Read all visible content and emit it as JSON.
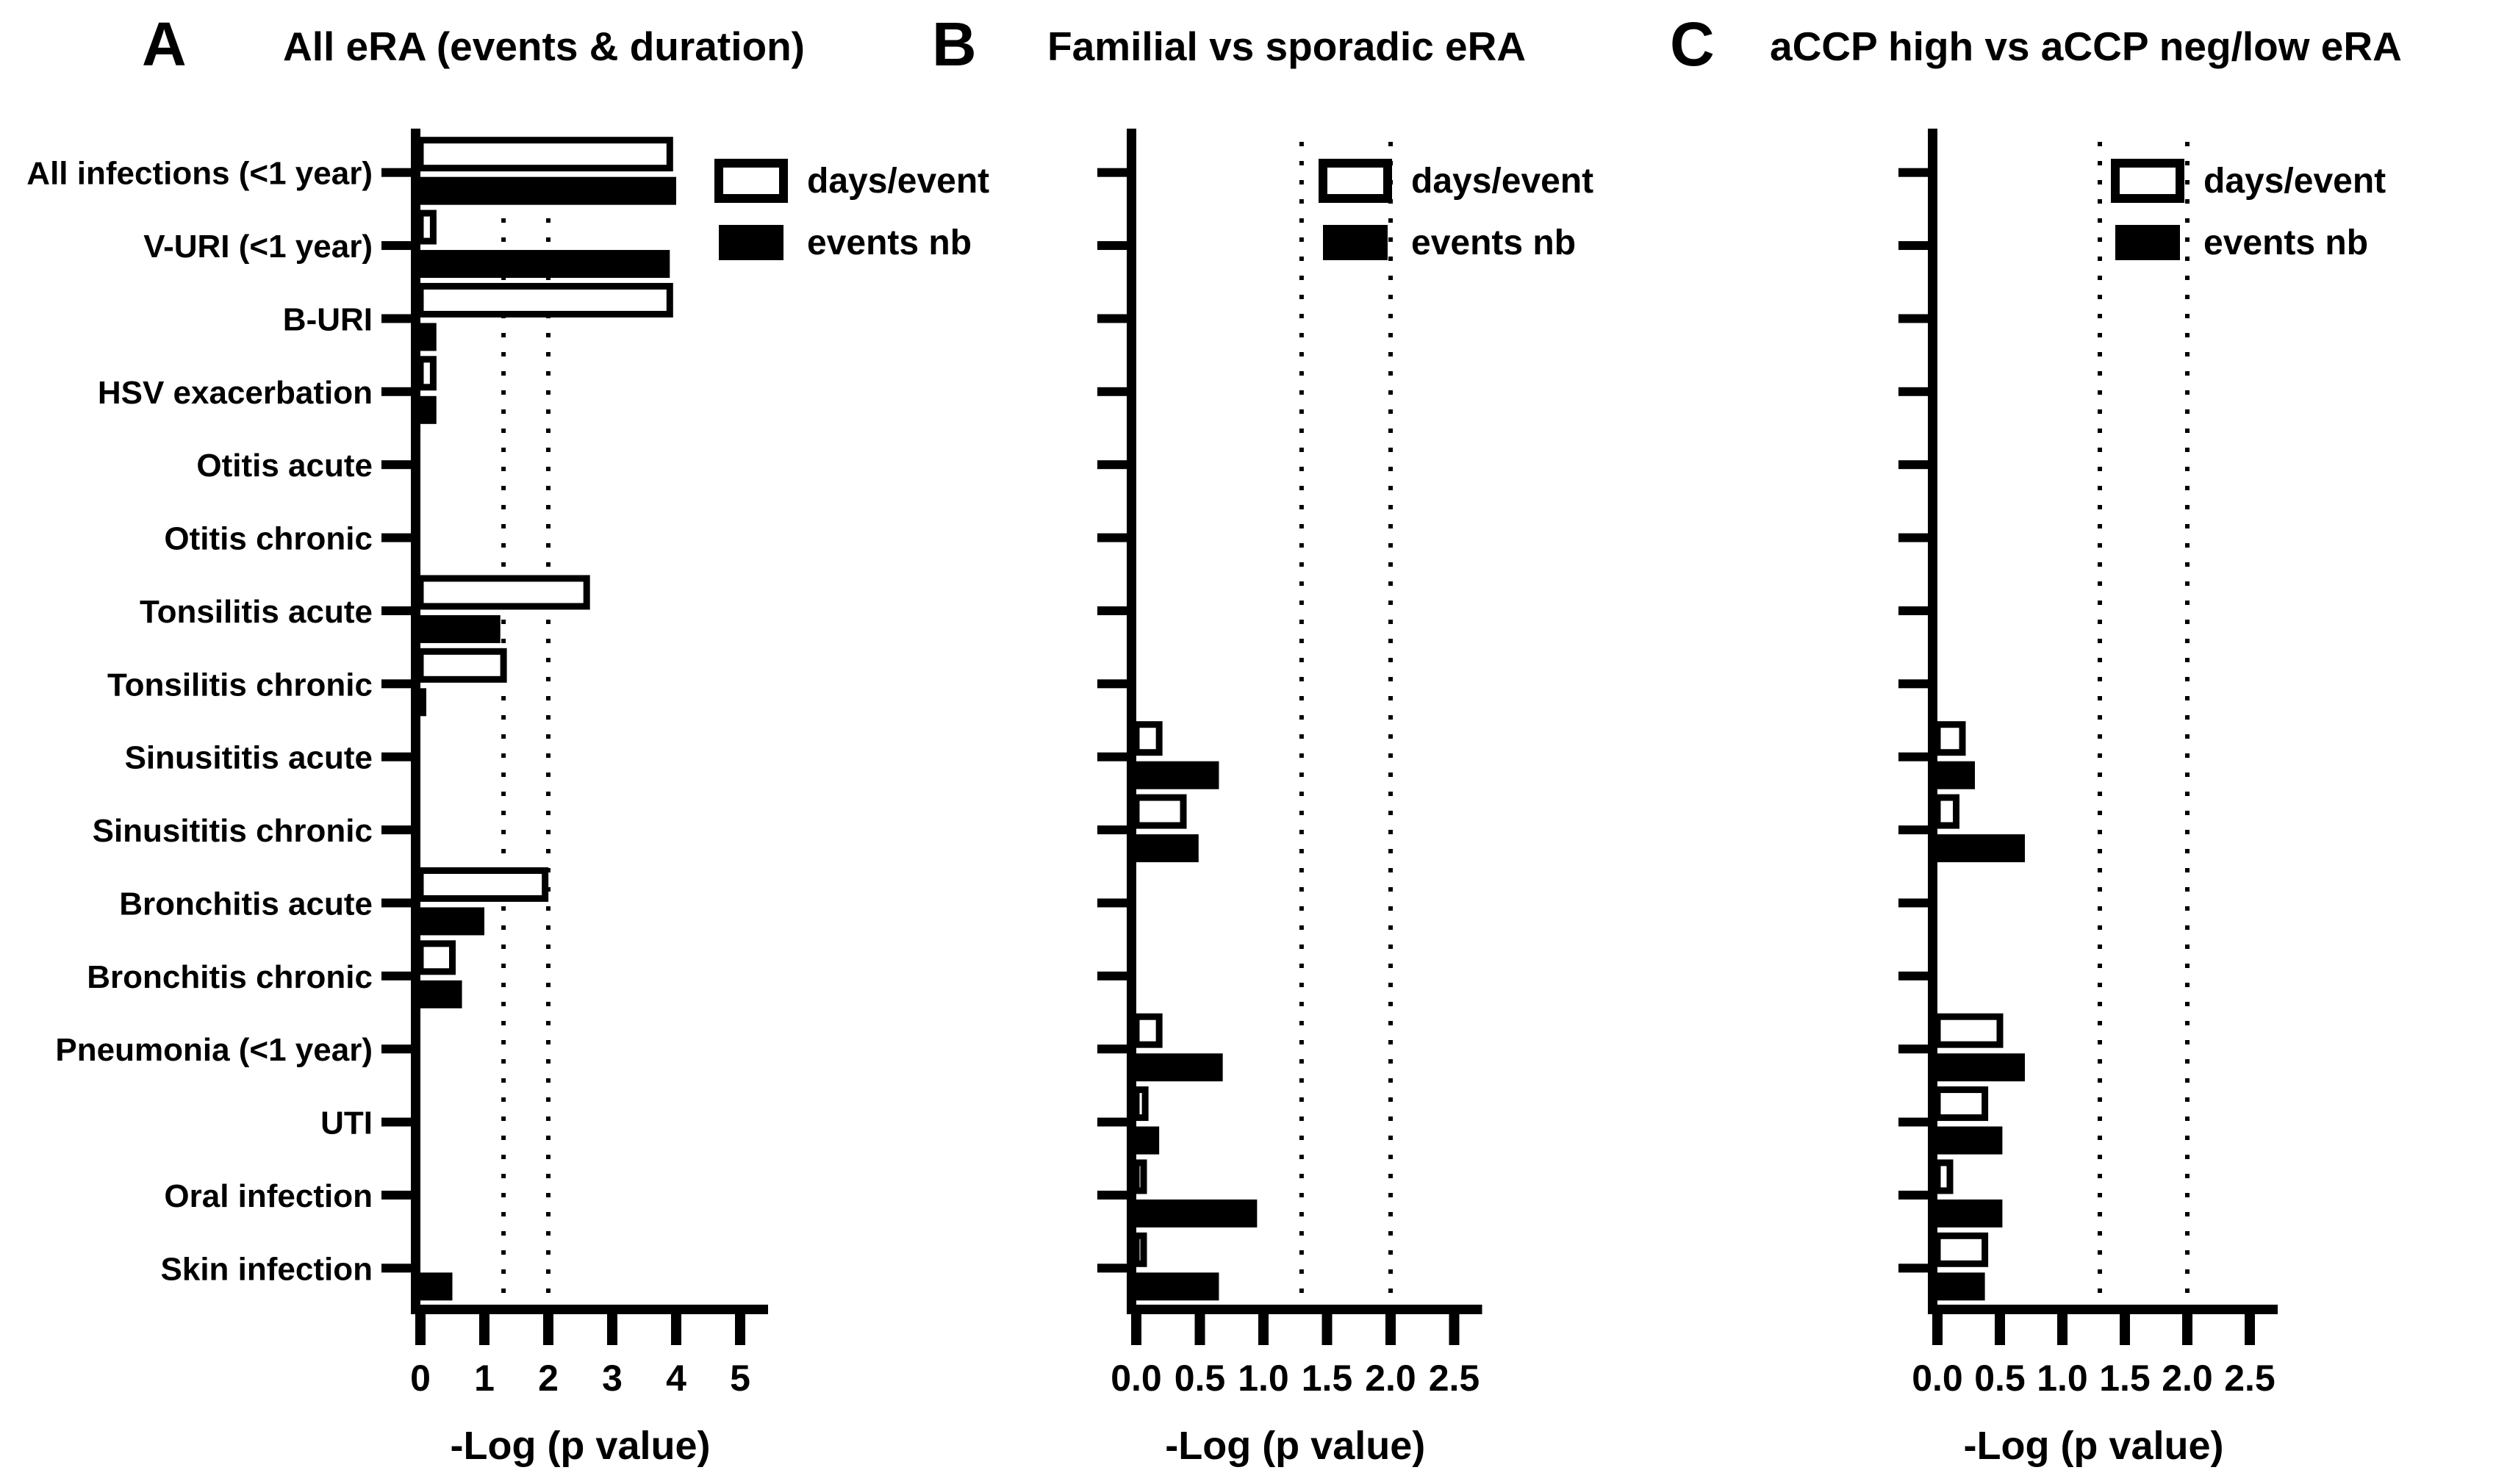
{
  "figure": {
    "background": "#ffffff",
    "axis_color": "#000000",
    "xlabel": "-Log (p value)",
    "legend": {
      "days_label": "days/event",
      "events_label": "events nb",
      "days_swatch": "open-white-rect",
      "events_swatch": "filled-black-rect"
    },
    "colors": {
      "bar_fill_days": "#ffffff",
      "bar_stroke_days": "#000000",
      "bar_fill_events": "#000000",
      "reference_line": "#000000"
    }
  },
  "chart_data": [
    {
      "type": "bar",
      "orientation": "horizontal",
      "panel_label": "A",
      "title": "All eRA (events & duration)",
      "xlabel": "-Log (p value)",
      "xlim": [
        0,
        5
      ],
      "x_ticks": [
        "0",
        "1",
        "2",
        "3",
        "4",
        "5"
      ],
      "x_tick_values": [
        0,
        1,
        2,
        3,
        4,
        5
      ],
      "reference_lines": [
        1.3,
        2.0
      ],
      "grid": "off",
      "legend_position": "top-right",
      "show_category_labels": true,
      "categories": [
        "All infections (<1 year)",
        "V-URI (<1 year)",
        "B-URI",
        "HSV exacerbation",
        "Otitis acute",
        "Otitis chronic",
        "Tonsilitis acute",
        "Tonsilitis chronic",
        "Sinusititis acute",
        "Sinusititis chronic",
        "Bronchitis acute",
        "Bronchitis chronic",
        "Pneumonia (<1 year)",
        "UTI",
        "Oral infection",
        "Skin infection"
      ],
      "series": [
        {
          "name": "days/event",
          "values": [
            3.9,
            0.2,
            3.9,
            0.2,
            0,
            0,
            2.6,
            1.3,
            0,
            0,
            1.95,
            0.5,
            0,
            0,
            0,
            0
          ]
        },
        {
          "name": "events nb",
          "values": [
            4.0,
            3.9,
            0.25,
            0.25,
            0,
            0,
            1.25,
            0.07,
            0,
            0,
            1.0,
            0.65,
            0,
            0,
            0,
            0.5
          ]
        }
      ]
    },
    {
      "type": "bar",
      "orientation": "horizontal",
      "panel_label": "B",
      "title": "Familial vs sporadic eRA",
      "xlabel": "-Log (p value)",
      "xlim": [
        0,
        2.5
      ],
      "x_ticks": [
        "0.0",
        "0.5",
        "1.0",
        "1.5",
        "2.0",
        "2.5"
      ],
      "x_tick_values": [
        0,
        0.5,
        1.0,
        1.5,
        2.0,
        2.5
      ],
      "reference_lines": [
        1.3,
        2.0
      ],
      "grid": "off",
      "legend_position": "top-right",
      "show_category_labels": false,
      "categories": [
        "All infections (<1 year)",
        "V-URI (<1 year)",
        "B-URI",
        "HSV exacerbation",
        "Otitis acute",
        "Otitis chronic",
        "Tonsilitis acute",
        "Tonsilitis chronic",
        "Sinusititis acute",
        "Sinusititis chronic",
        "Bronchitis acute",
        "Bronchitis chronic",
        "Pneumonia (<1 year)",
        "UTI",
        "Oral infection",
        "Skin infection"
      ],
      "series": [
        {
          "name": "days/event",
          "values": [
            0,
            0,
            0,
            0,
            0,
            0,
            0,
            0,
            0.18,
            0.37,
            0,
            0,
            0.18,
            0.07,
            0.04,
            0.04
          ]
        },
        {
          "name": "events nb",
          "values": [
            0,
            0,
            0,
            0,
            0,
            0,
            0,
            0,
            0.65,
            0.49,
            0,
            0,
            0.68,
            0.18,
            0.95,
            0.65
          ]
        }
      ]
    },
    {
      "type": "bar",
      "orientation": "horizontal",
      "panel_label": "C",
      "title": "aCCP high vs aCCP neg/low eRA",
      "xlabel": "-Log (p value)",
      "xlim": [
        0,
        2.5
      ],
      "x_ticks": [
        "0.0",
        "0.5",
        "1.0",
        "1.5",
        "2.0",
        "2.5"
      ],
      "x_tick_values": [
        0,
        0.5,
        1.0,
        1.5,
        2.0,
        2.5
      ],
      "reference_lines": [
        1.3,
        2.0
      ],
      "grid": "off",
      "legend_position": "top-right",
      "show_category_labels": false,
      "categories": [
        "All infections (<1 year)",
        "V-URI (<1 year)",
        "B-URI",
        "HSV exacerbation",
        "Otitis acute",
        "Otitis chronic",
        "Tonsilitis acute",
        "Tonsilitis chronic",
        "Sinusititis acute",
        "Sinusititis chronic",
        "Bronchitis acute",
        "Bronchitis chronic",
        "Pneumonia (<1 year)",
        "UTI",
        "Oral infection",
        "Skin infection"
      ],
      "series": [
        {
          "name": "days/event",
          "values": [
            0,
            0,
            0,
            0,
            0,
            0,
            0,
            0,
            0.2,
            0.15,
            0,
            0,
            0.5,
            0.38,
            0.1,
            0.38
          ]
        },
        {
          "name": "events nb",
          "values": [
            0,
            0,
            0,
            0,
            0,
            0,
            0,
            0,
            0.3,
            0.7,
            0,
            0,
            0.7,
            0.52,
            0.52,
            0.38
          ]
        }
      ]
    }
  ]
}
